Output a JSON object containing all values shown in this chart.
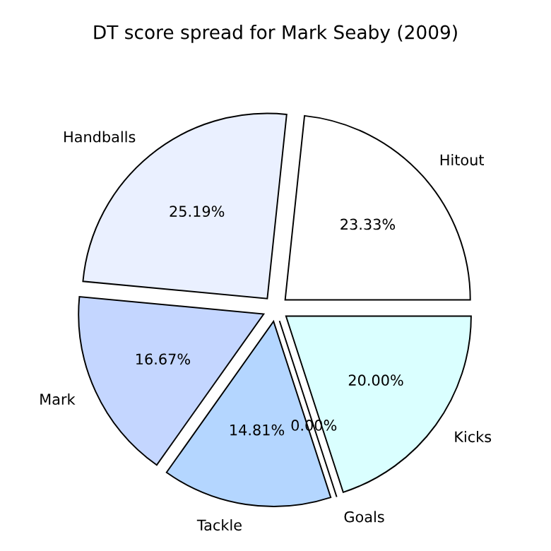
{
  "chart_data": {
    "type": "pie",
    "title": "DT score spread for Mark Seaby (2009)",
    "categories": [
      "Hitout",
      "Handballs",
      "Mark",
      "Tackle",
      "Goals",
      "Kicks"
    ],
    "values": [
      23.33,
      25.19,
      16.67,
      14.81,
      0.0,
      20.0
    ],
    "value_labels": [
      "23.33%",
      "25.19%",
      "16.67%",
      "14.81%",
      "0.00%",
      "20.00%"
    ],
    "colors": [
      "#ffffff",
      "#eaf0ff",
      "#c4d6ff",
      "#b4d6ff",
      "#d0f0ff",
      "#daffff"
    ]
  }
}
